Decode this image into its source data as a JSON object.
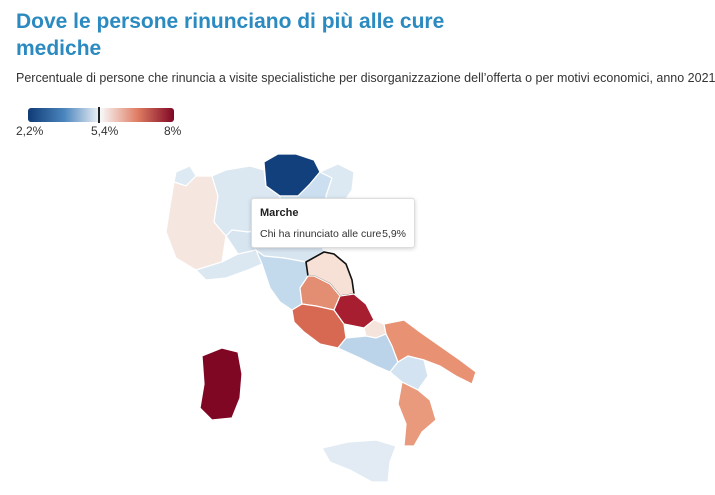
{
  "title": "Dove le persone rinunciano di più alle cure mediche",
  "subtitle": "Percentuale di persone che rinuncia a visite specialistiche per disorganizzazione dell’offerta o per motivi economici, anno 2021",
  "legend": {
    "min_label": "2,2%",
    "mid_label": "5,4%",
    "max_label": "8%",
    "min_value": 2.2,
    "mid_value": 5.4,
    "max_value": 8,
    "colors": [
      "#0f3b75",
      "#4c86bf",
      "#f7f7f7",
      "#df7d63",
      "#7f0724"
    ]
  },
  "tooltip": {
    "region": "Marche",
    "label": "Chi ha rinunciato alle cure",
    "value": "5,9%"
  },
  "map": {
    "regions": [
      {
        "name": "Valle d'Aosta",
        "color": "#dde9f3"
      },
      {
        "name": "Piemonte",
        "color": "#f6e6e0"
      },
      {
        "name": "Lombardia",
        "color": "#dbe7f1"
      },
      {
        "name": "Trentino-Alto Adige",
        "color": "#12407c"
      },
      {
        "name": "Veneto",
        "color": "#ccdff0"
      },
      {
        "name": "Friuli-Venezia Giulia",
        "color": "#dce8f2"
      },
      {
        "name": "Liguria",
        "color": "#dbe7f1"
      },
      {
        "name": "Emilia-Romagna",
        "color": "#d7e5f1"
      },
      {
        "name": "Toscana",
        "color": "#c3d9ec"
      },
      {
        "name": "Umbria",
        "color": "#e38d72"
      },
      {
        "name": "Marche",
        "color": "#f7e1d6"
      },
      {
        "name": "Lazio",
        "color": "#d76852"
      },
      {
        "name": "Abruzzo",
        "color": "#a61e2f"
      },
      {
        "name": "Molise",
        "color": "#f5e4dc"
      },
      {
        "name": "Campania",
        "color": "#bcd4ea"
      },
      {
        "name": "Puglia",
        "color": "#e99273"
      },
      {
        "name": "Basilicata",
        "color": "#d3e3f1"
      },
      {
        "name": "Calabria",
        "color": "#e99a7c"
      },
      {
        "name": "Sicilia",
        "color": "#e2ebf3"
      },
      {
        "name": "Sardegna",
        "color": "#7f0724"
      }
    ]
  }
}
